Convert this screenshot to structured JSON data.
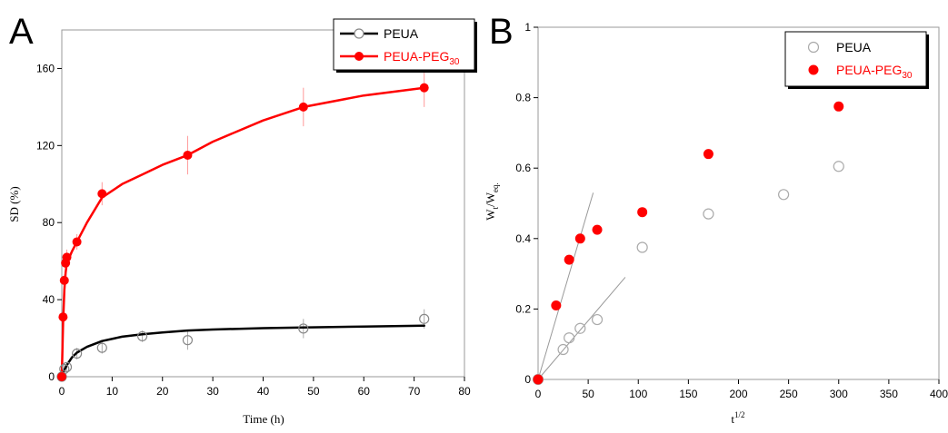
{
  "chart_data": [
    {
      "panel": "A",
      "type": "line",
      "xlabel": "Time (h)",
      "ylabel": "SD (%)",
      "xlim": [
        0,
        80
      ],
      "ylim": [
        0,
        180
      ],
      "xticks": [
        0,
        10,
        20,
        30,
        40,
        50,
        60,
        70,
        80
      ],
      "yticks": [
        0,
        40,
        80,
        120,
        160
      ],
      "grid": false,
      "legend_position": "top-right",
      "series": [
        {
          "name": "PEUA",
          "color": "#000000",
          "marker": "open-circle",
          "x": [
            0,
            0.5,
            1,
            3,
            8,
            16,
            25,
            48,
            72
          ],
          "y": [
            0,
            4,
            5,
            12,
            15,
            21,
            19,
            25,
            30
          ],
          "err": [
            1,
            2,
            2,
            3,
            3,
            3,
            5,
            5,
            5
          ],
          "fit_x": [
            0,
            0.5,
            1,
            2,
            3,
            5,
            8,
            12,
            16,
            20,
            25,
            30,
            40,
            48,
            60,
            72
          ],
          "fit_y": [
            0,
            3.5,
            6,
            10,
            12.5,
            15.5,
            18.5,
            20.8,
            22,
            23,
            24,
            24.5,
            25.2,
            25.6,
            26,
            26.5
          ]
        },
        {
          "name": "PEUA-PEG",
          "name_sub": "30",
          "color": "#ff0000",
          "marker": "filled-circle",
          "x": [
            0,
            0.25,
            0.5,
            0.75,
            1,
            3,
            8,
            25,
            48,
            72
          ],
          "y": [
            0,
            31,
            50,
            59,
            62,
            70,
            95,
            115,
            140,
            150
          ],
          "err": [
            1,
            3,
            3,
            3,
            4,
            4,
            6,
            10,
            10,
            10
          ],
          "fit_x": [
            0,
            0.25,
            0.5,
            0.75,
            1,
            2,
            3,
            5,
            8,
            12,
            16,
            20,
            25,
            30,
            40,
            48,
            60,
            72
          ],
          "fit_y": [
            0,
            28,
            45,
            54,
            59,
            65,
            70,
            80,
            93,
            100,
            105,
            110,
            115,
            122,
            133,
            140,
            146,
            150
          ]
        }
      ]
    },
    {
      "panel": "B",
      "type": "scatter",
      "xlabel": "t",
      "xlabel_sup": "1/2",
      "ylabel": "W",
      "ylabel_sub1": "t",
      "ylabel_mid": "/W",
      "ylabel_sub2": "eq.",
      "xlim": [
        0,
        400
      ],
      "ylim": [
        0,
        1
      ],
      "xticks": [
        0,
        50,
        100,
        150,
        200,
        250,
        300,
        350,
        400
      ],
      "yticks": [
        0,
        0.2,
        0.4,
        0.6,
        0.8,
        1
      ],
      "grid": false,
      "legend_position": "top-right",
      "series": [
        {
          "name": "PEUA",
          "color": "#aaaaaa",
          "marker": "open-circle",
          "x": [
            0,
            25,
            31,
            42,
            59,
            104,
            170,
            245,
            300
          ],
          "y": [
            0,
            0.085,
            0.118,
            0.145,
            0.17,
            0.375,
            0.47,
            0.525,
            0.605
          ]
        },
        {
          "name": "PEUA-PEG",
          "name_sub": "30",
          "color": "#ff0000",
          "marker": "filled-circle",
          "x": [
            0,
            18,
            31,
            42,
            59,
            104,
            170,
            300
          ],
          "y": [
            0,
            0.21,
            0.34,
            0.4,
            0.425,
            0.475,
            0.64,
            0.775
          ]
        }
      ],
      "fit_lines": [
        {
          "x": [
            0,
            55
          ],
          "y": [
            0,
            0.53
          ]
        },
        {
          "x": [
            0,
            87
          ],
          "y": [
            0,
            0.29
          ]
        }
      ]
    }
  ]
}
